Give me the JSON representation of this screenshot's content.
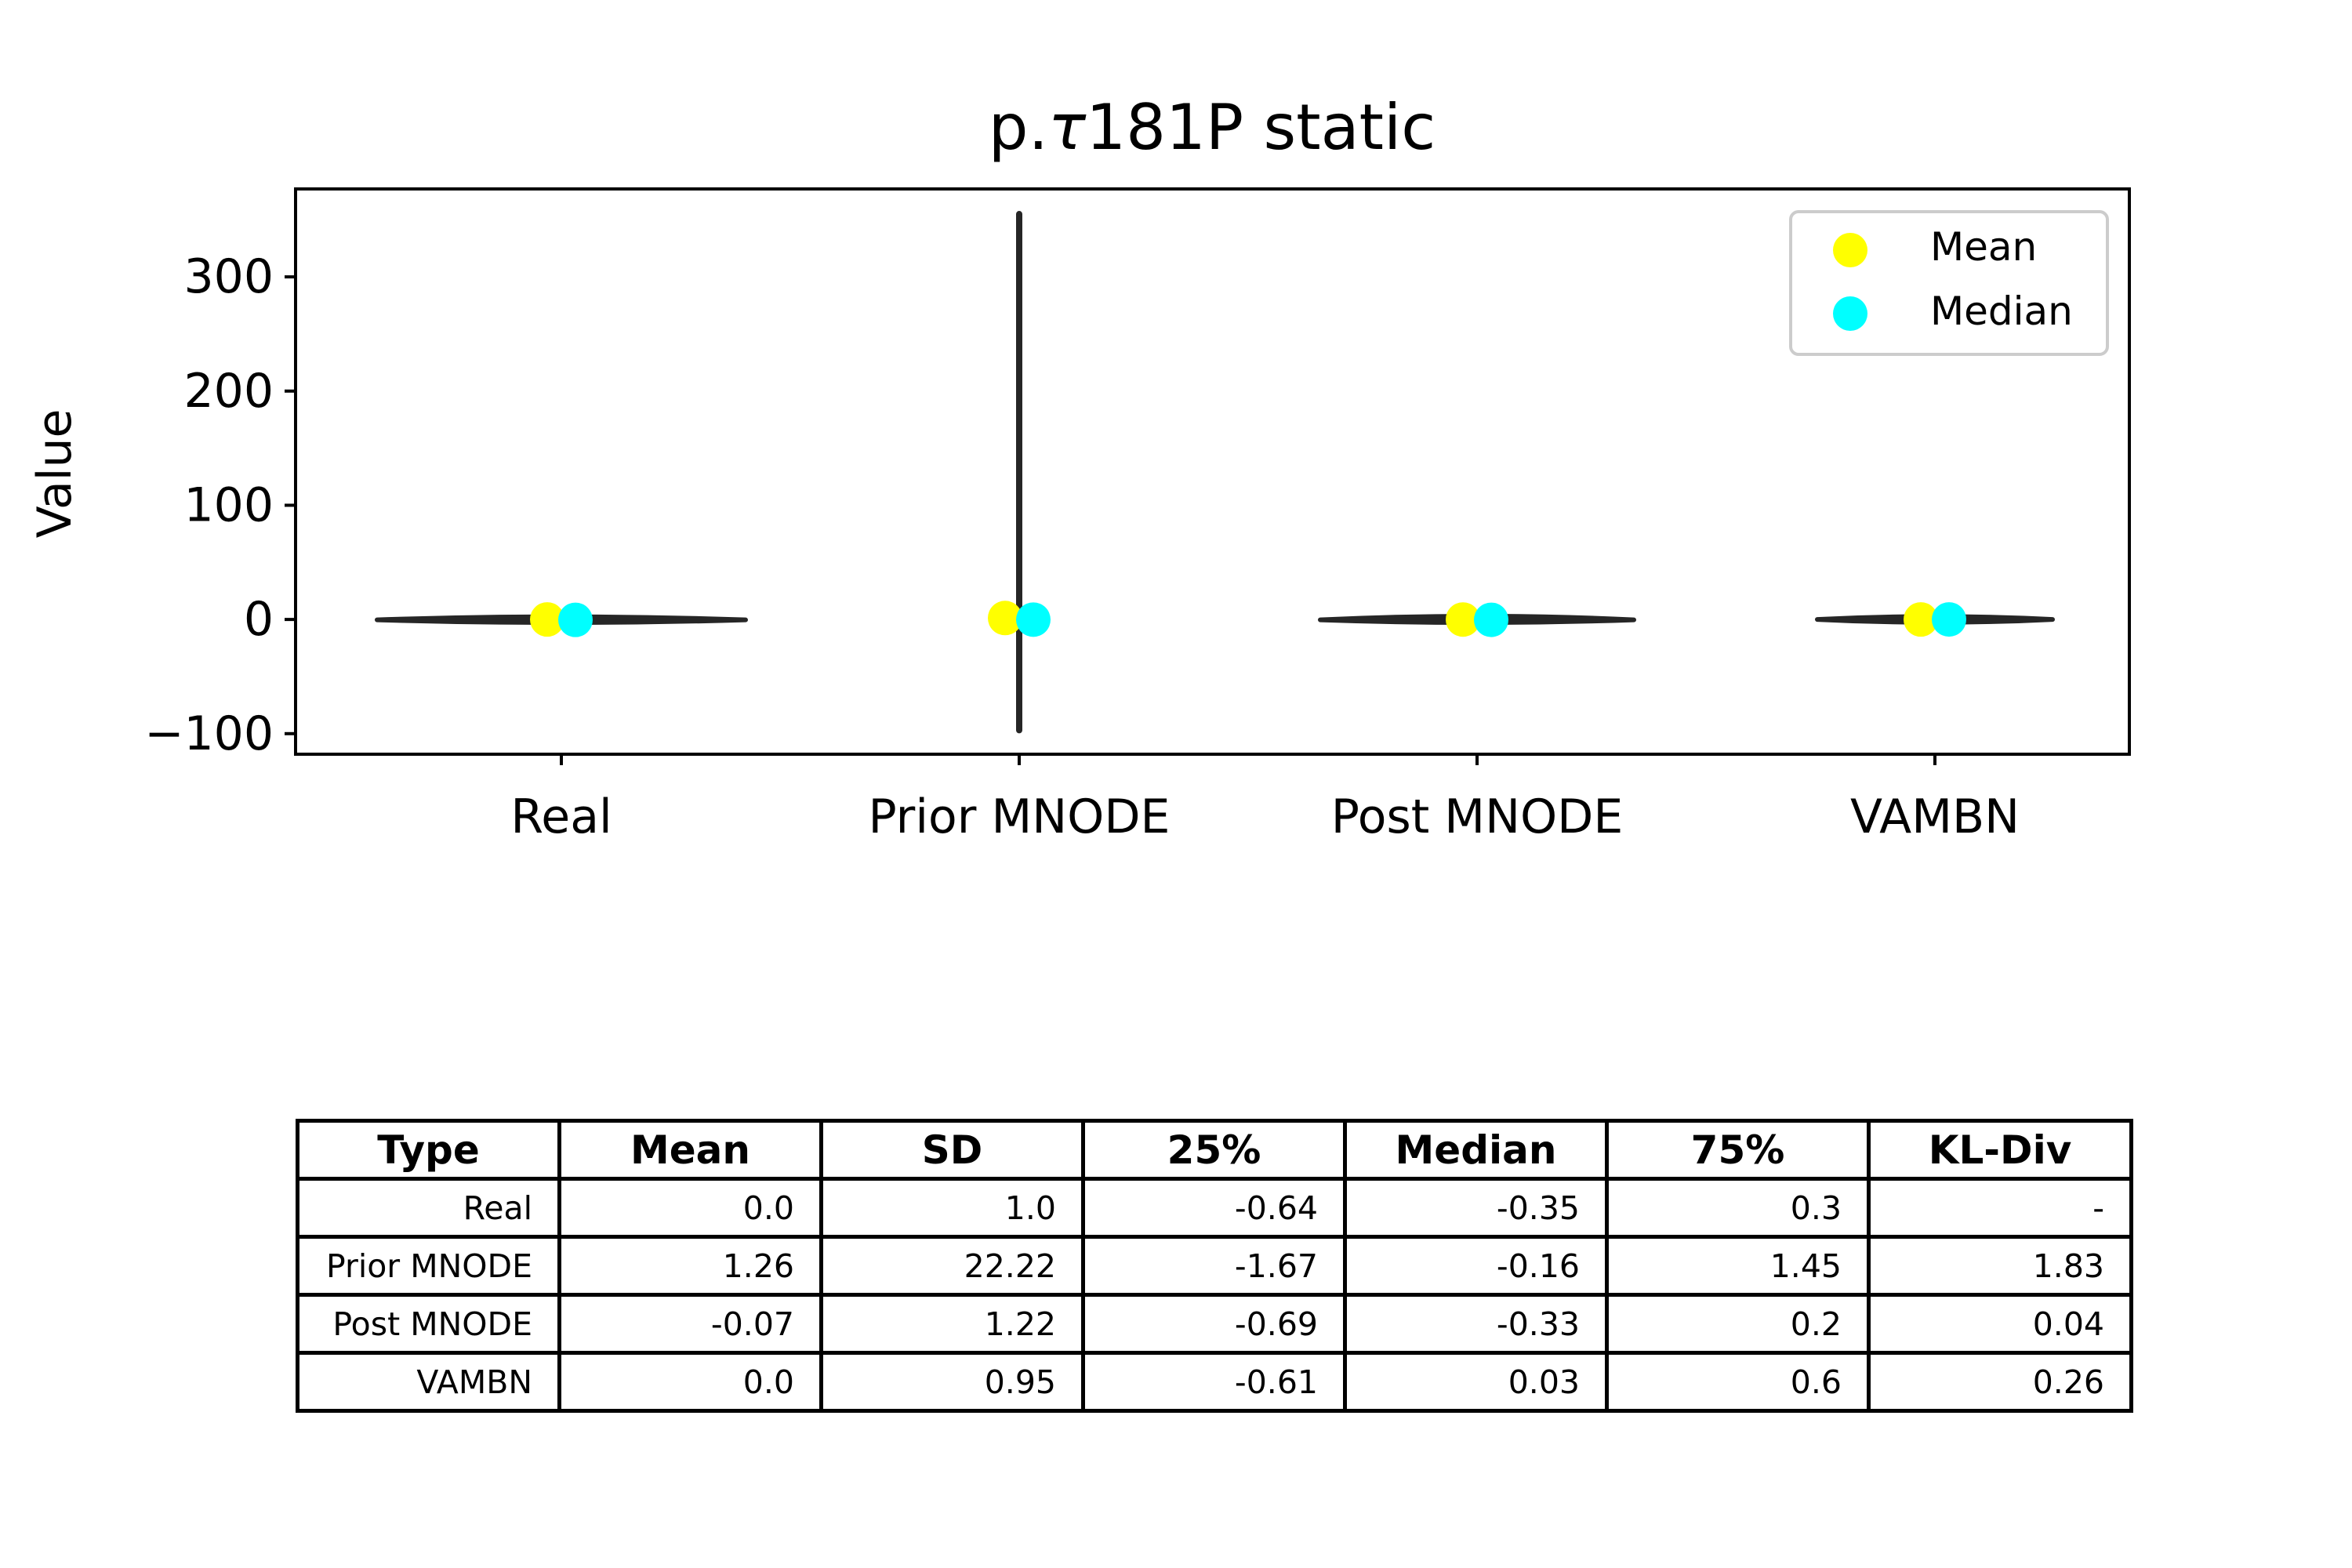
{
  "chart_data": {
    "type": "violin",
    "title": "p.τ181P static",
    "title_prefix": "p.",
    "title_symbol": "τ",
    "title_suffix": "181P static",
    "xlabel": "",
    "ylabel": "Value",
    "ylim": [
      -118,
      377
    ],
    "yticks": [
      -100,
      0,
      100,
      200,
      300
    ],
    "ytick_labels": [
      "−100",
      "0",
      "100",
      "200",
      "300"
    ],
    "categories": [
      "Real",
      "Prior MNODE",
      "Post MNODE",
      "VAMBN"
    ],
    "distributions": [
      {
        "label": "Real",
        "min": -3,
        "max": 3,
        "mean": 0.0,
        "median": -0.35
      },
      {
        "label": "Prior MNODE",
        "min": -97,
        "max": 355,
        "mean": 1.26,
        "median": -0.16
      },
      {
        "label": "Post MNODE",
        "min": -3,
        "max": 4,
        "mean": -0.07,
        "median": -0.33
      },
      {
        "label": "VAMBN",
        "min": -3,
        "max": 3,
        "mean": 0.0,
        "median": 0.03
      }
    ],
    "legend": {
      "placement": "top-right",
      "entries": [
        {
          "label": "Mean",
          "color": "#ffff00"
        },
        {
          "label": "Median",
          "color": "#00ffff"
        }
      ]
    },
    "grid": false,
    "colors": {
      "mean": "#ffff00",
      "median": "#00ffff",
      "violin": "#262626"
    }
  },
  "table": {
    "headers": [
      "Type",
      "Mean",
      "SD",
      "25%",
      "Median",
      "75%",
      "KL-Div"
    ],
    "rows": [
      [
        "Real",
        "0.0",
        "1.0",
        "-0.64",
        "-0.35",
        "0.3",
        "-"
      ],
      [
        "Prior MNODE",
        "1.26",
        "22.22",
        "-1.67",
        "-0.16",
        "1.45",
        "1.83"
      ],
      [
        "Post MNODE",
        "-0.07",
        "1.22",
        "-0.69",
        "-0.33",
        "0.2",
        "0.04"
      ],
      [
        "VAMBN",
        "0.0",
        "0.95",
        "-0.61",
        "0.03",
        "0.6",
        "0.26"
      ]
    ]
  }
}
